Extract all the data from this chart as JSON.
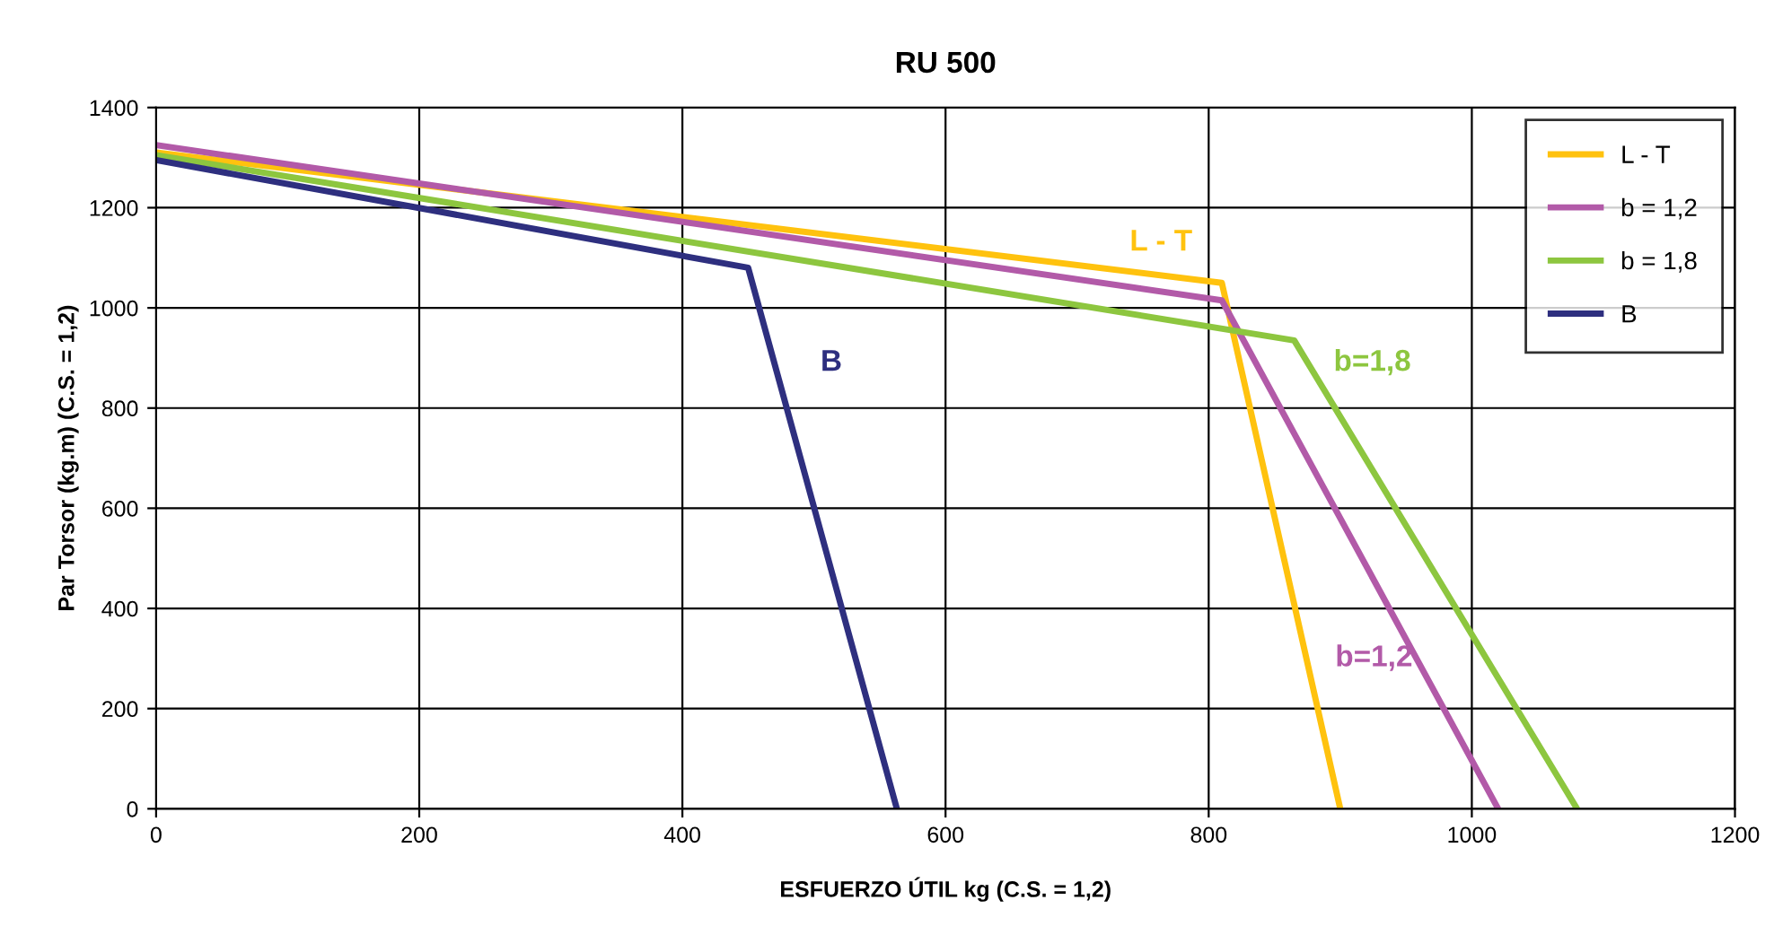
{
  "chart_data": {
    "type": "line",
    "title": "RU 500",
    "xlabel": "ESFUERZO ÚTIL kg (C.S. = 1,2)",
    "ylabel": "Par Torsor (kg.m) (C.S. = 1,2)",
    "series": [
      {
        "name": "L - T",
        "color": "#ffc20e",
        "x": [
          0,
          810,
          900
        ],
        "values": [
          1310,
          1050,
          0
        ]
      },
      {
        "name": "b = 1,2",
        "color": "#b25aa8",
        "x": [
          0,
          810,
          1020
        ],
        "values": [
          1325,
          1015,
          0
        ]
      },
      {
        "name": "b = 1,8",
        "color": "#8dc63f",
        "x": [
          0,
          865,
          1080
        ],
        "values": [
          1305,
          935,
          0
        ]
      },
      {
        "name": "B",
        "color": "#2e2f7f",
        "x": [
          0,
          450,
          563
        ],
        "values": [
          1295,
          1080,
          0
        ]
      }
    ],
    "annotations": [
      "L - T",
      "b=1,2",
      "b=1,8",
      "B"
    ],
    "xlim": [
      0,
      1200
    ],
    "xticks": [
      0,
      200,
      400,
      600,
      800,
      1000,
      1200
    ],
    "ylim": [
      0,
      1400
    ],
    "yticks": [
      0,
      200,
      400,
      600,
      800,
      1000,
      1200,
      1400
    ],
    "grid": true,
    "legend": "top right",
    "marker": "none",
    "line_style": "solid"
  }
}
